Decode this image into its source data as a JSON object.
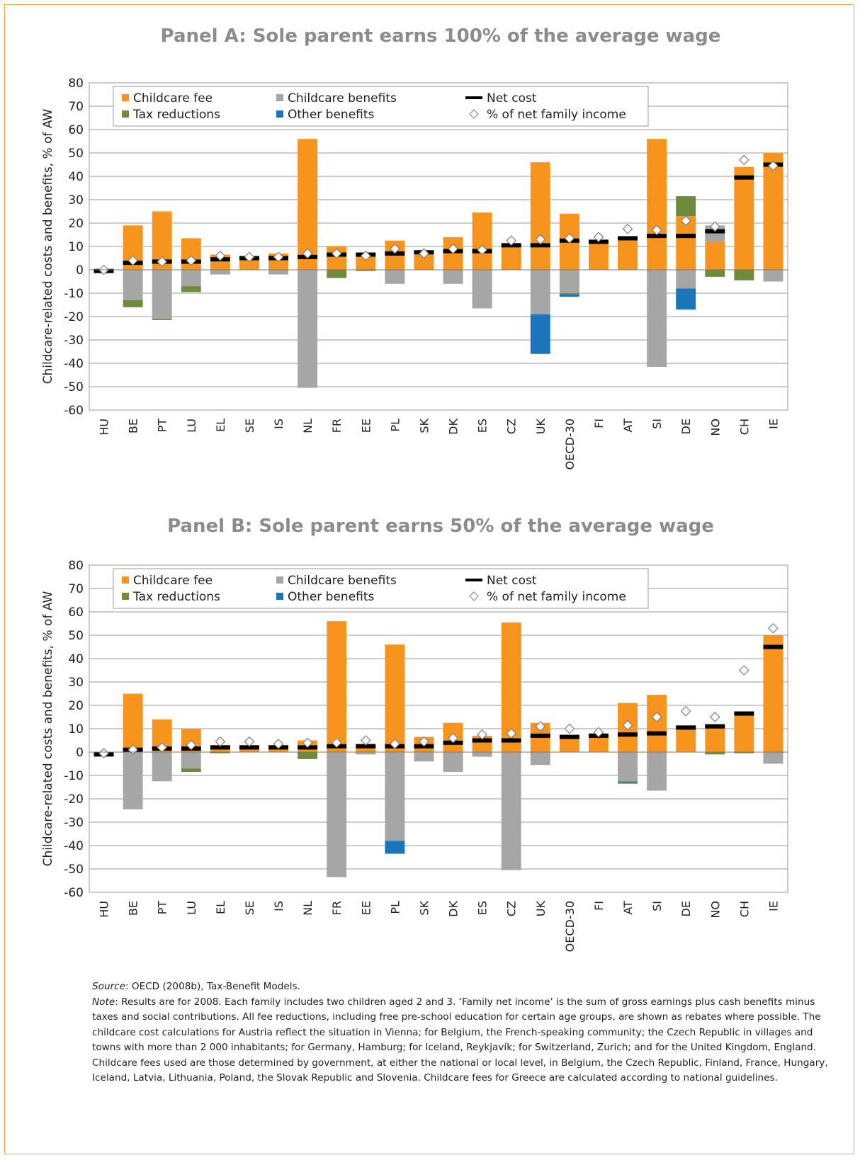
{
  "chart_data": [
    {
      "type": "bar",
      "title": "Panel A: Sole parent earns 100% of the average wage",
      "ylabel": "Childcare-related costs and benefits, % of AW",
      "categories": [
        "HU",
        "BE",
        "PT",
        "LU",
        "EL",
        "SE",
        "IS",
        "NL",
        "FR",
        "EE",
        "PL",
        "SK",
        "DK",
        "ES",
        "CZ",
        "UK",
        "OECD-30",
        "FI",
        "AT",
        "SI",
        "DE",
        "NO",
        "CH",
        "IE"
      ],
      "ylim": [
        -60,
        80
      ],
      "yticks": [
        -60,
        -50,
        -40,
        -30,
        -20,
        -10,
        0,
        10,
        20,
        30,
        40,
        50,
        60,
        70,
        80
      ],
      "grid": true,
      "series": [
        {
          "name": "Childcare fee",
          "color": "#f7941d",
          "marker": "bar",
          "values": [
            0,
            19,
            25,
            13.5,
            6.5,
            5.5,
            7,
            56,
            10,
            7,
            12.5,
            8,
            14,
            24.5,
            11,
            46,
            24,
            12.5,
            14,
            56,
            23,
            12,
            44,
            50
          ]
        },
        {
          "name": "Childcare benefits",
          "color": "#a6a6a6",
          "marker": "bar",
          "values": [
            0,
            -13,
            -21,
            -7,
            -2,
            0,
            -2,
            -50.5,
            0,
            0,
            -6,
            0,
            -6,
            -16.5,
            0,
            -19,
            -10,
            0,
            0,
            -41.5,
            -8,
            7,
            0,
            -5
          ]
        },
        {
          "name": "Tax reductions",
          "color": "#6d8b3a",
          "marker": "bar",
          "values": [
            0,
            -3,
            -0.5,
            -2.5,
            0,
            0,
            0,
            0,
            -3.5,
            -0.5,
            0,
            0,
            0,
            0,
            0,
            0,
            -0.5,
            0,
            0,
            0,
            8.5,
            -3,
            -4.5,
            0
          ]
        },
        {
          "name": "Other benefits",
          "color": "#1b75bc",
          "marker": "bar",
          "values": [
            0,
            0,
            0,
            0,
            0,
            0,
            0,
            0,
            0,
            0,
            0,
            0,
            0,
            0,
            0,
            -17,
            -1,
            0,
            0,
            0,
            -9,
            0,
            0,
            0
          ]
        },
        {
          "name": "Net cost",
          "color": "#000000",
          "marker": "dash",
          "values": [
            -0.5,
            3,
            3.5,
            3.5,
            4.5,
            5,
            5,
            5.5,
            6.5,
            6.5,
            7,
            7.5,
            8,
            8,
            10.5,
            10.5,
            12.5,
            12,
            13.5,
            14.5,
            14.5,
            16.5,
            39.5,
            45
          ]
        },
        {
          "name": "% of net family income",
          "color": "#7f7f7f",
          "marker": "diamond",
          "values": [
            0,
            4,
            3.5,
            4,
            6,
            5.5,
            5.5,
            7,
            7,
            6,
            9,
            7,
            9,
            8.5,
            12.5,
            13,
            13.5,
            14,
            17.5,
            17,
            21,
            18.5,
            47,
            44.5
          ]
        }
      ]
    },
    {
      "type": "bar",
      "title": "Panel B: Sole parent earns 50% of the average wage",
      "ylabel": "Childcare-related costs and benefits, % of AW",
      "categories": [
        "HU",
        "BE",
        "PT",
        "LU",
        "EL",
        "SE",
        "IS",
        "NL",
        "FR",
        "EE",
        "PL",
        "SK",
        "DK",
        "ES",
        "CZ",
        "UK",
        "OECD-30",
        "FI",
        "AT",
        "SI",
        "DE",
        "NO",
        "CH",
        "IE"
      ],
      "ylim": [
        -60,
        80
      ],
      "yticks": [
        -60,
        -50,
        -40,
        -30,
        -20,
        -10,
        0,
        10,
        20,
        30,
        40,
        50,
        60,
        70,
        80
      ],
      "grid": true,
      "series": [
        {
          "name": "Childcare fee",
          "color": "#f7941d",
          "marker": "bar",
          "values": [
            0,
            25,
            14,
            10,
            3,
            3,
            3,
            5,
            56,
            3.5,
            46,
            6.5,
            12.5,
            7,
            55.5,
            12.5,
            7,
            8,
            21,
            24.5,
            10.5,
            12,
            17,
            50
          ]
        },
        {
          "name": "Childcare benefits",
          "color": "#a6a6a6",
          "marker": "bar",
          "values": [
            0,
            -24.5,
            -12.5,
            -7,
            0,
            0,
            0,
            0,
            -53.5,
            -1,
            -38,
            -4,
            -8.5,
            -2,
            -50.5,
            -5.5,
            0,
            0,
            -12.5,
            -16.5,
            0,
            0,
            0,
            -5
          ]
        },
        {
          "name": "Tax reductions",
          "color": "#6d8b3a",
          "marker": "bar",
          "values": [
            0,
            0,
            0,
            -1.5,
            -0.5,
            0,
            0,
            -3,
            0,
            0,
            0,
            0,
            0,
            0,
            0,
            0,
            0,
            0,
            -0.5,
            0,
            0,
            -1,
            -0.5,
            0
          ]
        },
        {
          "name": "Other benefits",
          "color": "#1b75bc",
          "marker": "bar",
          "values": [
            0,
            0,
            0,
            0,
            0,
            0,
            0,
            0,
            0,
            0,
            -5.5,
            0,
            0,
            0,
            0,
            0,
            0,
            0,
            -0.5,
            0,
            0,
            0,
            0,
            0
          ]
        },
        {
          "name": "Net cost",
          "color": "#000000",
          "marker": "dash",
          "values": [
            -1,
            1,
            1.5,
            1.5,
            2,
            2,
            2,
            2,
            2.5,
            2.5,
            2.5,
            2.5,
            4,
            5,
            5,
            7,
            6.5,
            7,
            7.5,
            8,
            10.5,
            11,
            16.5,
            45
          ]
        },
        {
          "name": "% of net family income",
          "color": "#7f7f7f",
          "marker": "diamond",
          "values": [
            -0.5,
            1,
            2,
            3,
            4.5,
            4.5,
            3.5,
            4,
            4,
            5,
            3.5,
            4.5,
            6,
            7.5,
            8,
            11,
            10,
            8.5,
            11.5,
            15,
            17.5,
            15,
            35,
            53
          ]
        }
      ]
    }
  ],
  "source": {
    "label": "Source",
    "text": ": OECD (2008b), Tax-Benefit Models."
  },
  "note": {
    "label": "Note",
    "text": ": Results are for 2008. Each family includes two children aged 2 and 3. ‘Family net income’ is the sum of gross earnings plus cash benefits minus taxes and social contributions. All fee reductions, including free pre-school education for certain age groups, are shown as rebates where possible. The childcare cost calculations for Austria reflect the situation in Vienna; for Belgium, the French-speaking community; the Czech Republic in villages and towns with more than 2 000 inhabitants; for Germany, Hamburg; for Iceland, Reykjavík; for Switzerland, Zurich; and for the United Kingdom, England. Childcare fees used are those determined by government, at either the national or local level, in Belgium, the Czech Republic, Finland, France, Hungary, Iceland, Latvia, Lithuania, Poland, the Slovak Republic and Slovenia. Childcare fees for Greece are calculated according to national guidelines."
  }
}
